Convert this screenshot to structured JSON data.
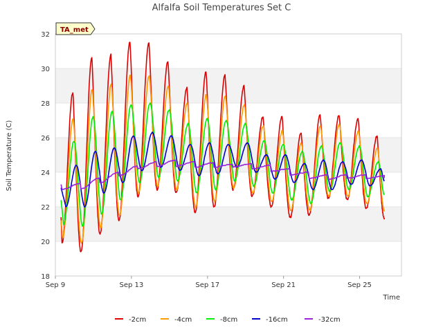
{
  "chart_data": {
    "type": "line",
    "title": "Alfalfa Soil Temperatures Set C",
    "xlabel": "Time",
    "ylabel": "Soil Temperature (C)",
    "badge": "TA_met",
    "ylim": [
      18,
      32
    ],
    "yticks": [
      "18",
      "20",
      "22",
      "24",
      "26",
      "28",
      "30",
      "32"
    ],
    "xlim": [
      9,
      27.2
    ],
    "xticks": [
      {
        "value": 9,
        "label": "Sep 9"
      },
      {
        "value": 13,
        "label": "Sep 13"
      },
      {
        "value": 17,
        "label": "Sep 17"
      },
      {
        "value": 21,
        "label": "Sep 21"
      },
      {
        "value": 25,
        "label": "Sep 25"
      }
    ],
    "grid": "alternating horizontal bands",
    "legend_position": "bottom",
    "day_starts": [
      9.3,
      10.3,
      11.3,
      12.3,
      13.3,
      14.3,
      15.3,
      16.3,
      17.3,
      18.3,
      19.3,
      20.3,
      21.3,
      22.3,
      23.3,
      24.3,
      25.3,
      26.3
    ],
    "series": [
      {
        "name": "-2cm",
        "color": "#dd0000",
        "start": 21.4,
        "end": 21.3,
        "phase": 0.62,
        "lag": 0,
        "sharp": 1.6,
        "noise": 0.12,
        "maxs": [
          28.6,
          30.6,
          30.8,
          31.5,
          31.5,
          30.4,
          28.9,
          29.8,
          29.6,
          29.0,
          27.2,
          27.2,
          26.3,
          27.3,
          27.3,
          27.1,
          26.1
        ],
        "mins": [
          19.9,
          19.4,
          20.4,
          21.2,
          22.6,
          23.0,
          22.8,
          21.7,
          22.0,
          23.0,
          22.6,
          22.0,
          21.4,
          21.5,
          22.5,
          22.4,
          21.9
        ]
      },
      {
        "name": "-4cm",
        "color": "#ff9900",
        "start": 21.2,
        "end": 21.8,
        "phase": 0.64,
        "lag": 0.03,
        "sharp": 1.4,
        "noise": 0.1,
        "maxs": [
          27.1,
          28.8,
          29.1,
          29.6,
          29.6,
          29.0,
          28.0,
          28.5,
          28.4,
          27.9,
          26.7,
          26.4,
          25.7,
          26.7,
          26.8,
          26.4,
          25.4
        ],
        "mins": [
          20.2,
          19.9,
          20.8,
          21.5,
          22.8,
          23.2,
          23.0,
          22.0,
          22.3,
          23.1,
          22.8,
          22.3,
          21.8,
          21.8,
          22.6,
          22.6,
          22.2
        ]
      },
      {
        "name": "-8cm",
        "color": "#00ee00",
        "start": 22.4,
        "end": 22.7,
        "phase": 0.68,
        "lag": 0.08,
        "sharp": 1.0,
        "noise": 0.08,
        "maxs": [
          25.8,
          27.2,
          27.5,
          27.9,
          28.0,
          27.6,
          26.8,
          27.1,
          27.0,
          26.8,
          25.8,
          25.6,
          25.2,
          25.5,
          25.7,
          25.5,
          24.6
        ],
        "mins": [
          21.0,
          20.9,
          21.6,
          22.4,
          23.4,
          23.7,
          23.5,
          22.8,
          23.0,
          23.5,
          23.2,
          22.8,
          22.4,
          22.2,
          22.9,
          23.0,
          22.6
        ]
      },
      {
        "name": "-16cm",
        "color": "#0000cc",
        "start": 23.1,
        "end": 23.5,
        "phase": 0.8,
        "lag": 0.2,
        "sharp": 1.0,
        "noise": 0.04,
        "maxs": [
          24.4,
          25.2,
          25.4,
          26.1,
          26.3,
          26.1,
          25.6,
          25.7,
          25.6,
          25.7,
          25.0,
          25.0,
          24.5,
          24.7,
          24.6,
          24.7,
          24.2
        ],
        "mins": [
          22.0,
          22.0,
          22.8,
          23.4,
          24.1,
          24.3,
          24.1,
          23.8,
          23.9,
          24.3,
          24.0,
          23.6,
          23.4,
          23.0,
          23.0,
          23.3,
          23.2
        ]
      },
      {
        "name": "-32cm",
        "color": "#9922dd",
        "start": 23.3,
        "end": 23.7,
        "phase": 1.0,
        "lag": 0,
        "sharp": 1.0,
        "noise": 0.05,
        "maxs": [
          23.35,
          23.65,
          24.0,
          24.35,
          24.6,
          24.7,
          24.6,
          24.55,
          24.45,
          24.5,
          24.4,
          24.2,
          24.0,
          23.85,
          23.85,
          23.85,
          23.8
        ],
        "mins": [
          23.0,
          23.05,
          23.4,
          23.8,
          24.2,
          24.35,
          24.35,
          24.3,
          24.3,
          24.3,
          24.2,
          24.05,
          23.85,
          23.65,
          23.6,
          23.65,
          23.65
        ]
      }
    ]
  }
}
